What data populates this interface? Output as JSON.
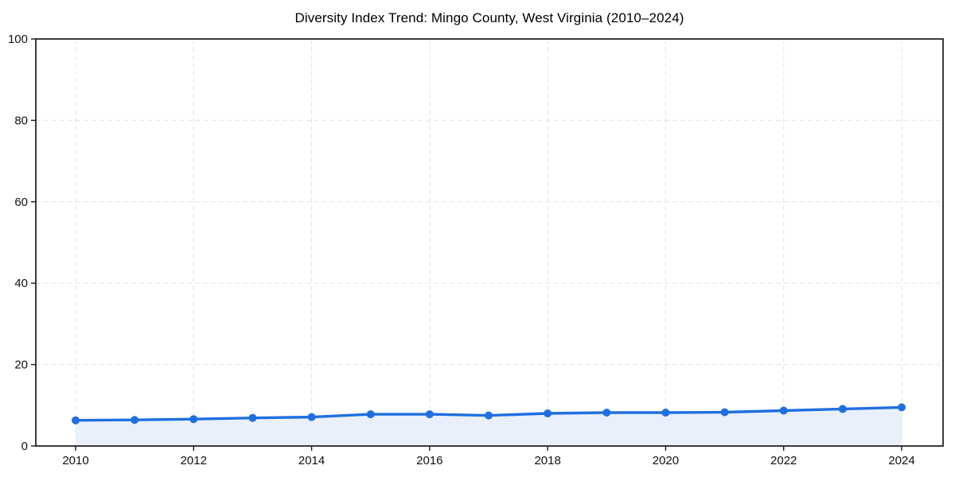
{
  "chart_data": {
    "type": "area",
    "title": "Diversity Index Trend: Mingo County, West Virginia (2010–2024)",
    "series_name": "Diversity Index",
    "x": [
      2010,
      2011,
      2012,
      2013,
      2014,
      2015,
      2016,
      2017,
      2018,
      2019,
      2020,
      2021,
      2022,
      2023,
      2024
    ],
    "values": [
      6.3,
      6.4,
      6.6,
      6.9,
      7.1,
      7.8,
      7.8,
      7.5,
      8.0,
      8.2,
      8.2,
      8.3,
      8.7,
      9.1,
      9.5
    ],
    "xlim": [
      2010,
      2024
    ],
    "ylim": [
      0,
      100
    ],
    "xticks": [
      2010,
      2012,
      2014,
      2016,
      2018,
      2020,
      2022,
      2024
    ],
    "yticks": [
      0,
      20,
      40,
      60,
      80,
      100
    ],
    "xlabel": "",
    "ylabel": "",
    "grid": true,
    "legend": false,
    "marker": "circle",
    "colors": {
      "line": "#1f6fe0",
      "marker": "#1f6fe0",
      "fill": "#e9f0fc",
      "grid": "#e2e2e2",
      "axis": "#1a1a1a",
      "tick_text": "#111111",
      "background": "#ffffff"
    }
  }
}
